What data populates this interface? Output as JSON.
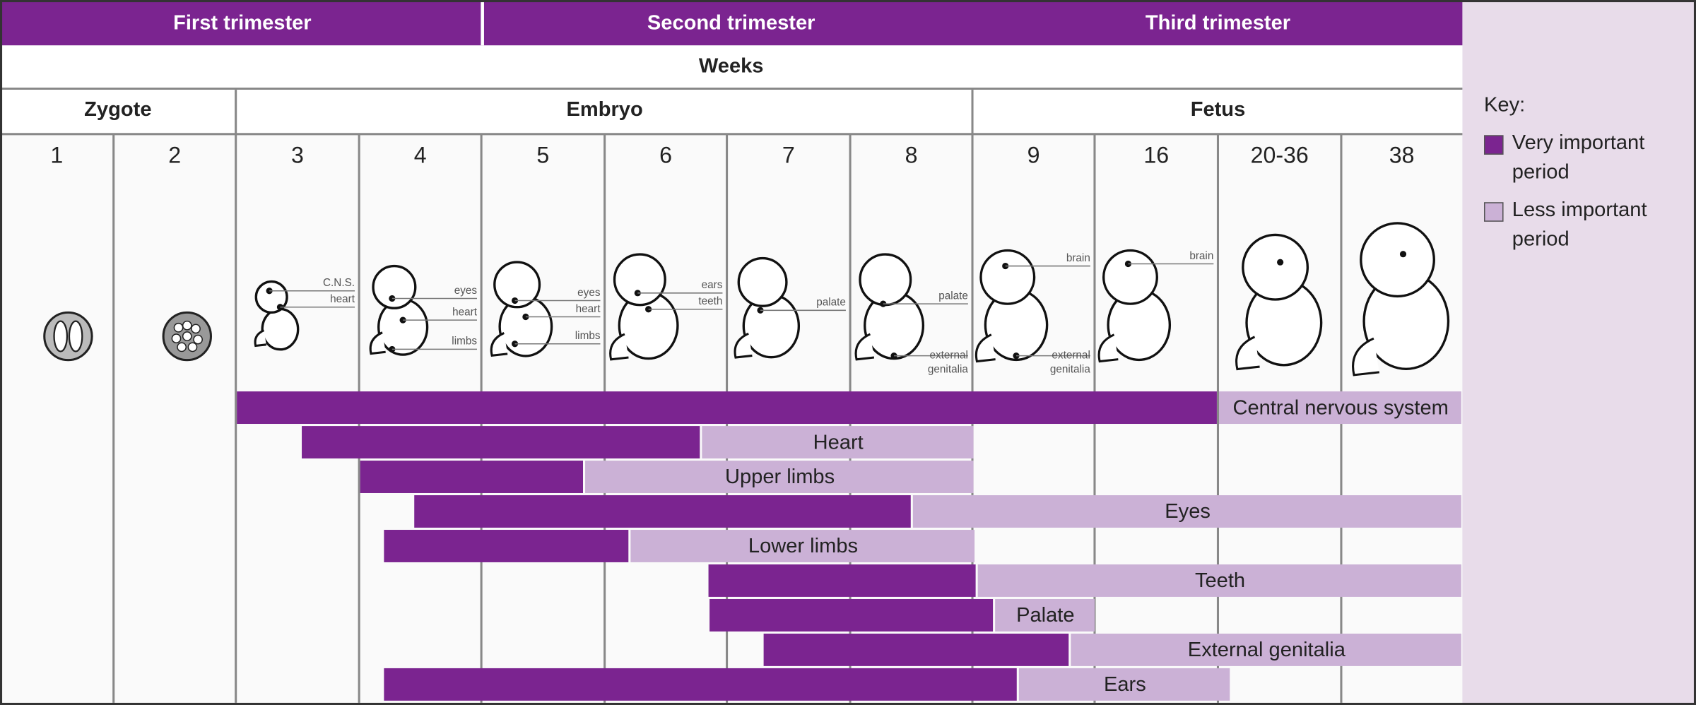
{
  "trimesters": [
    "First trimester",
    "Second trimester",
    "Third trimester"
  ],
  "weeks_title": "Weeks",
  "stages": [
    "Zygote",
    "Embryo",
    "Fetus"
  ],
  "weeks": [
    "1",
    "2",
    "3",
    "4",
    "5",
    "6",
    "7",
    "8",
    "9",
    "16",
    "20-36",
    "38"
  ],
  "annotations": [
    [],
    [],
    [
      [
        "C.N.S."
      ],
      [
        "heart"
      ]
    ],
    [
      [
        "eyes"
      ],
      [
        "heart"
      ],
      [
        "limbs"
      ]
    ],
    [
      [
        "eyes"
      ],
      [
        "heart"
      ],
      [
        "limbs"
      ]
    ],
    [
      [
        "ears"
      ],
      [
        "teeth"
      ]
    ],
    [
      [
        "palate"
      ]
    ],
    [
      [
        "palate"
      ],
      [
        "external",
        "genitalia"
      ]
    ],
    [
      [
        "brain"
      ],
      [
        "external",
        "genitalia"
      ]
    ],
    [
      [
        "brain"
      ]
    ],
    [],
    []
  ],
  "bars": [
    "Central nervous system",
    "Heart",
    "Upper limbs",
    "Eyes",
    "Lower limbs",
    "Teeth",
    "Palate",
    "External genitalia",
    "Ears"
  ],
  "key": {
    "title": "Key:",
    "items": [
      "Very important period",
      "Less important period"
    ]
  }
}
